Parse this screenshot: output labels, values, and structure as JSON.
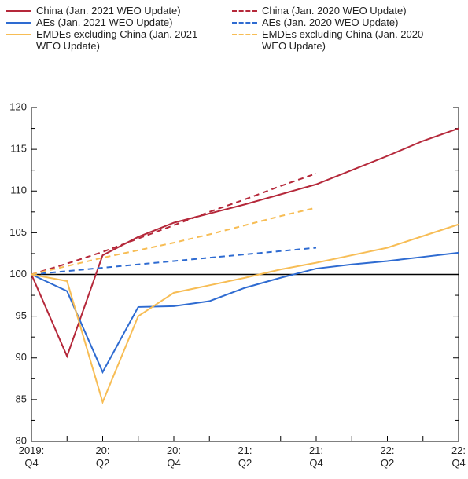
{
  "chart_data": {
    "type": "line",
    "categories": [
      "2019: Q4",
      null,
      "20: Q2",
      null,
      "20: Q4",
      null,
      "21: Q2",
      null,
      "21: Q4",
      null,
      "22: Q2",
      null,
      "22: Q4"
    ],
    "series": [
      {
        "name": "China (Jan. 2021 WEO Update)",
        "color": "#b5283a",
        "dash": false,
        "values": [
          100,
          90.2,
          102.3,
          104.5,
          106.2,
          107.3,
          108.4,
          109.6,
          110.8,
          112.5,
          114.2,
          116.0,
          117.5
        ]
      },
      {
        "name": "China (Jan. 2020 WEO Update)",
        "color": "#b5283a",
        "dash": true,
        "values": [
          100,
          101.3,
          102.7,
          104.3,
          105.9,
          107.5,
          109.0,
          110.6,
          112.1,
          null,
          null,
          null,
          null
        ]
      },
      {
        "name": "AEs (Jan. 2021 WEO Update)",
        "color": "#2e6bd1",
        "dash": false,
        "values": [
          100,
          98.0,
          88.3,
          96.1,
          96.2,
          96.8,
          98.4,
          99.6,
          100.7,
          101.2,
          101.6,
          102.1,
          102.6
        ]
      },
      {
        "name": "AEs (Jan. 2020 WEO Update)",
        "color": "#2e6bd1",
        "dash": true,
        "values": [
          100,
          100.4,
          100.8,
          101.2,
          101.6,
          102.0,
          102.4,
          102.8,
          103.2,
          null,
          null,
          null,
          null
        ]
      },
      {
        "name": "EMDEs excluding China (Jan. 2021 WEO Update)",
        "color": "#f7bd55",
        "dash": false,
        "values": [
          100,
          99.2,
          84.7,
          95.0,
          97.8,
          98.7,
          99.6,
          100.6,
          101.4,
          102.3,
          103.2,
          104.6,
          106.0
        ]
      },
      {
        "name": "EMDEs excluding China (Jan. 2020 WEO Update)",
        "color": "#f7bd55",
        "dash": true,
        "values": [
          100,
          101.0,
          102.0,
          102.9,
          103.8,
          104.8,
          105.9,
          107.0,
          108.0,
          null,
          null,
          null,
          null
        ]
      }
    ],
    "ylim": [
      80,
      120
    ],
    "yticks": [
      80,
      85,
      90,
      95,
      100,
      105,
      110,
      115,
      120
    ],
    "yminor_ticks": [
      82.5,
      87.5,
      92.5,
      97.5,
      102.5,
      107.5,
      112.5,
      117.5
    ],
    "hline": 100
  }
}
